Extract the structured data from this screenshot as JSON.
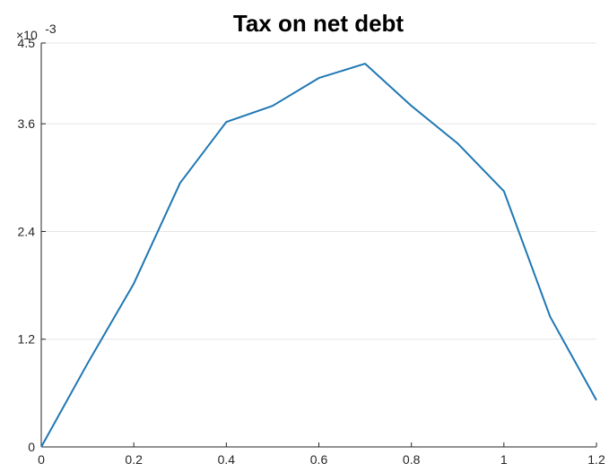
{
  "chart_data": {
    "type": "line",
    "title": "Tax on net debt",
    "xlabel": "",
    "ylabel": "",
    "exponent_label": {
      "base": "×10",
      "power": "-3"
    },
    "xlim": [
      0,
      1.2
    ],
    "ylim": [
      0,
      0.0045
    ],
    "x_ticks": [
      0,
      0.2,
      0.4,
      0.6,
      0.8,
      1,
      1.2
    ],
    "x_tick_labels": [
      "0",
      "0.2",
      "0.4",
      "0.6",
      "0.8",
      "1",
      "1.2"
    ],
    "y_ticks": [
      0,
      0.0012,
      0.0024,
      0.0036,
      0.0045
    ],
    "y_tick_labels": [
      "0",
      "1.2",
      "2.4",
      "3.6",
      "4.5"
    ],
    "grid": "horizontal",
    "line_color": "#1f77b4",
    "series": [
      {
        "x": [
          0,
          0.1,
          0.2,
          0.3,
          0.4,
          0.5,
          0.6,
          0.7,
          0.8,
          0.9,
          1.0,
          1.1,
          1.2
        ],
        "values": [
          0,
          0.00093,
          0.00182,
          0.00294,
          0.00362,
          0.0038,
          0.00411,
          0.00427,
          0.0038,
          0.00338,
          0.00285,
          0.00145,
          0.00052
        ]
      }
    ]
  }
}
